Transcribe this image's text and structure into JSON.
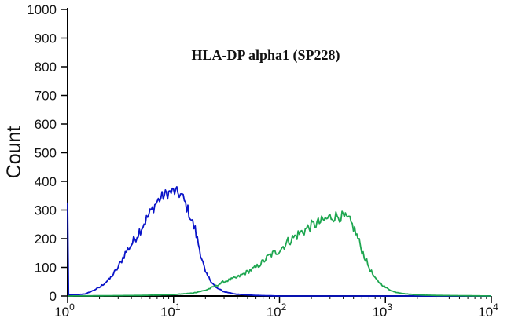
{
  "chart_data": {
    "type": "line",
    "title": "HLA-DP alpha1 (SP228)",
    "xlabel": "",
    "ylabel": "Count",
    "x_scale": "log",
    "xlim": [
      1,
      10000
    ],
    "ylim": [
      0,
      1000
    ],
    "x_ticks": [
      {
        "value": 1,
        "base": "10",
        "exp": "0"
      },
      {
        "value": 10,
        "base": "10",
        "exp": "1"
      },
      {
        "value": 100,
        "base": "10",
        "exp": "2"
      },
      {
        "value": 1000,
        "base": "10",
        "exp": "3"
      },
      {
        "value": 10000,
        "base": "10",
        "exp": "4"
      }
    ],
    "y_ticks": [
      0,
      100,
      200,
      300,
      400,
      500,
      600,
      700,
      800,
      900,
      1000
    ],
    "grid": false,
    "series": [
      {
        "color": "#0a14c8",
        "points": [
          [
            1.0,
            320
          ],
          [
            1.02,
            5
          ],
          [
            1.2,
            4
          ],
          [
            1.5,
            8
          ],
          [
            2.0,
            30
          ],
          [
            2.5,
            60
          ],
          [
            3.0,
            100
          ],
          [
            3.5,
            150
          ],
          [
            4.0,
            180
          ],
          [
            5.0,
            240
          ],
          [
            6.0,
            290
          ],
          [
            7.0,
            330
          ],
          [
            8.0,
            350
          ],
          [
            9.0,
            360
          ],
          [
            10.0,
            365
          ],
          [
            11.0,
            360
          ],
          [
            12.0,
            350
          ],
          [
            13.0,
            320
          ],
          [
            14.0,
            290
          ],
          [
            16.0,
            230
          ],
          [
            18.0,
            150
          ],
          [
            20.0,
            80
          ],
          [
            25.0,
            30
          ],
          [
            30.0,
            15
          ],
          [
            40.0,
            6
          ],
          [
            60.0,
            2
          ],
          [
            100.0,
            0
          ],
          [
            10000.0,
            0
          ]
        ]
      },
      {
        "color": "#1ea650",
        "points": [
          [
            1.0,
            0
          ],
          [
            5.0,
            2
          ],
          [
            10.0,
            5
          ],
          [
            15.0,
            10
          ],
          [
            20.0,
            20
          ],
          [
            25.0,
            35
          ],
          [
            30.0,
            50
          ],
          [
            40.0,
            65
          ],
          [
            50.0,
            85
          ],
          [
            60.0,
            100
          ],
          [
            70.0,
            120
          ],
          [
            80.0,
            140
          ],
          [
            100.0,
            160
          ],
          [
            120.0,
            190
          ],
          [
            150.0,
            215
          ],
          [
            200.0,
            245
          ],
          [
            250.0,
            260
          ],
          [
            300.0,
            275
          ],
          [
            350.0,
            280
          ],
          [
            400.0,
            275
          ],
          [
            450.0,
            265
          ],
          [
            500.0,
            240
          ],
          [
            550.0,
            200
          ],
          [
            600.0,
            160
          ],
          [
            700.0,
            100
          ],
          [
            800.0,
            60
          ],
          [
            1000.0,
            30
          ],
          [
            1200.0,
            15
          ],
          [
            1500.0,
            8
          ],
          [
            2000.0,
            4
          ],
          [
            3000.0,
            2
          ],
          [
            10000.0,
            0
          ]
        ]
      }
    ]
  }
}
